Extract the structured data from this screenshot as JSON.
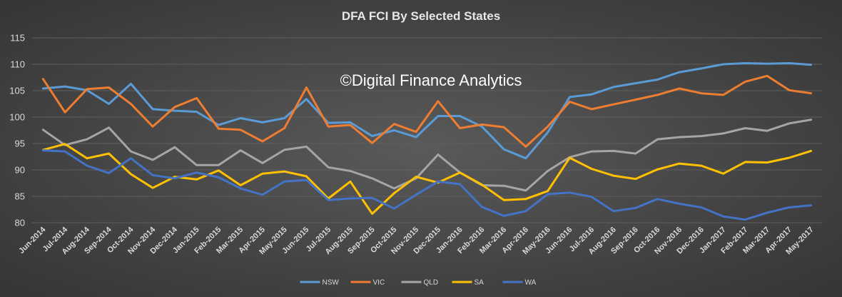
{
  "chart_data": {
    "type": "line",
    "title": "DFA FCI By Selected States",
    "watermark": "©Digital Finance Analytics",
    "xlabel": "",
    "ylabel": "",
    "ylim": [
      80,
      115
    ],
    "yticks": [
      "80",
      "85",
      "90",
      "95",
      "100",
      "105",
      "110",
      "115"
    ],
    "grid": true,
    "legend_position": "bottom",
    "categories": [
      "Jun-2014",
      "Jul-2014",
      "Aug-2014",
      "Sep-2014",
      "Oct-2014",
      "Nov-2014",
      "Dec-2014",
      "Jan-2015",
      "Feb-2015",
      "Mar-2015",
      "Apr-2015",
      "May-2015",
      "Jun-2015",
      "Jul-2015",
      "Aug-2015",
      "Sep-2015",
      "Oct-2015",
      "Nov-2015",
      "Dec-2015",
      "Jan-2016",
      "Feb-2016",
      "Mar-2016",
      "Apr-2016",
      "May-2016",
      "Jun-2016",
      "Jul-2016",
      "Aug-2016",
      "Sep-2016",
      "Oct-2016",
      "Nov-2016",
      "Dec-2016",
      "Jan-2017",
      "Feb-2017",
      "Mar-2017",
      "Apr-2017",
      "May-2017"
    ],
    "series": [
      {
        "name": "NSW",
        "color": "#5b9bd5",
        "values": [
          105.4,
          105.8,
          105.1,
          102.5,
          106.3,
          101.5,
          101.2,
          101.0,
          98.5,
          99.8,
          99.0,
          99.8,
          103.4,
          98.9,
          99.0,
          96.4,
          97.5,
          96.2,
          100.2,
          100.2,
          98.2,
          93.9,
          92.2,
          97.1,
          103.8,
          104.3,
          105.7,
          106.4,
          107.1,
          108.5,
          109.2,
          110.0,
          110.2,
          110.1,
          110.2,
          109.9
        ]
      },
      {
        "name": "VIC",
        "color": "#ed7d31",
        "values": [
          107.2,
          100.9,
          105.3,
          105.6,
          102.5,
          98.2,
          101.9,
          103.6,
          97.8,
          97.6,
          95.4,
          97.9,
          105.6,
          98.2,
          98.5,
          95.1,
          98.7,
          97.2,
          103.0,
          97.9,
          98.6,
          98.1,
          94.4,
          98.2,
          102.9,
          101.5,
          102.4,
          103.3,
          104.2,
          105.4,
          104.5,
          104.2,
          106.7,
          107.8,
          105.1,
          104.5
        ]
      },
      {
        "name": "QLD",
        "color": "#a5a5a5",
        "values": [
          97.6,
          94.7,
          95.8,
          98.0,
          93.5,
          91.9,
          94.3,
          90.9,
          90.9,
          93.7,
          91.3,
          93.8,
          94.4,
          90.5,
          89.8,
          88.4,
          86.5,
          88.4,
          92.9,
          89.5,
          87.1,
          87.0,
          86.1,
          89.8,
          92.4,
          93.5,
          93.6,
          93.1,
          95.8,
          96.2,
          96.4,
          96.9,
          97.9,
          97.4,
          98.8,
          99.5
        ]
      },
      {
        "name": "SA",
        "color": "#ffc000",
        "values": [
          93.8,
          94.9,
          92.2,
          93.1,
          89.2,
          86.6,
          88.7,
          88.2,
          89.9,
          87.1,
          89.3,
          89.7,
          88.8,
          84.6,
          87.8,
          81.7,
          85.6,
          88.7,
          87.6,
          89.5,
          87.2,
          84.3,
          84.5,
          86.0,
          92.3,
          90.2,
          88.9,
          88.3,
          90.1,
          91.2,
          90.8,
          89.3,
          91.5,
          91.4,
          92.3,
          93.6
        ]
      },
      {
        "name": "WA",
        "color": "#4472c4",
        "values": [
          93.7,
          93.5,
          90.8,
          89.4,
          92.2,
          89.0,
          88.4,
          89.5,
          88.6,
          86.5,
          85.3,
          87.8,
          88.1,
          84.3,
          84.6,
          84.7,
          82.7,
          85.3,
          87.8,
          87.3,
          83.0,
          81.3,
          82.2,
          85.4,
          85.7,
          84.9,
          82.2,
          82.8,
          84.5,
          83.6,
          82.9,
          81.2,
          80.6,
          81.9,
          82.9,
          83.3
        ]
      }
    ]
  }
}
